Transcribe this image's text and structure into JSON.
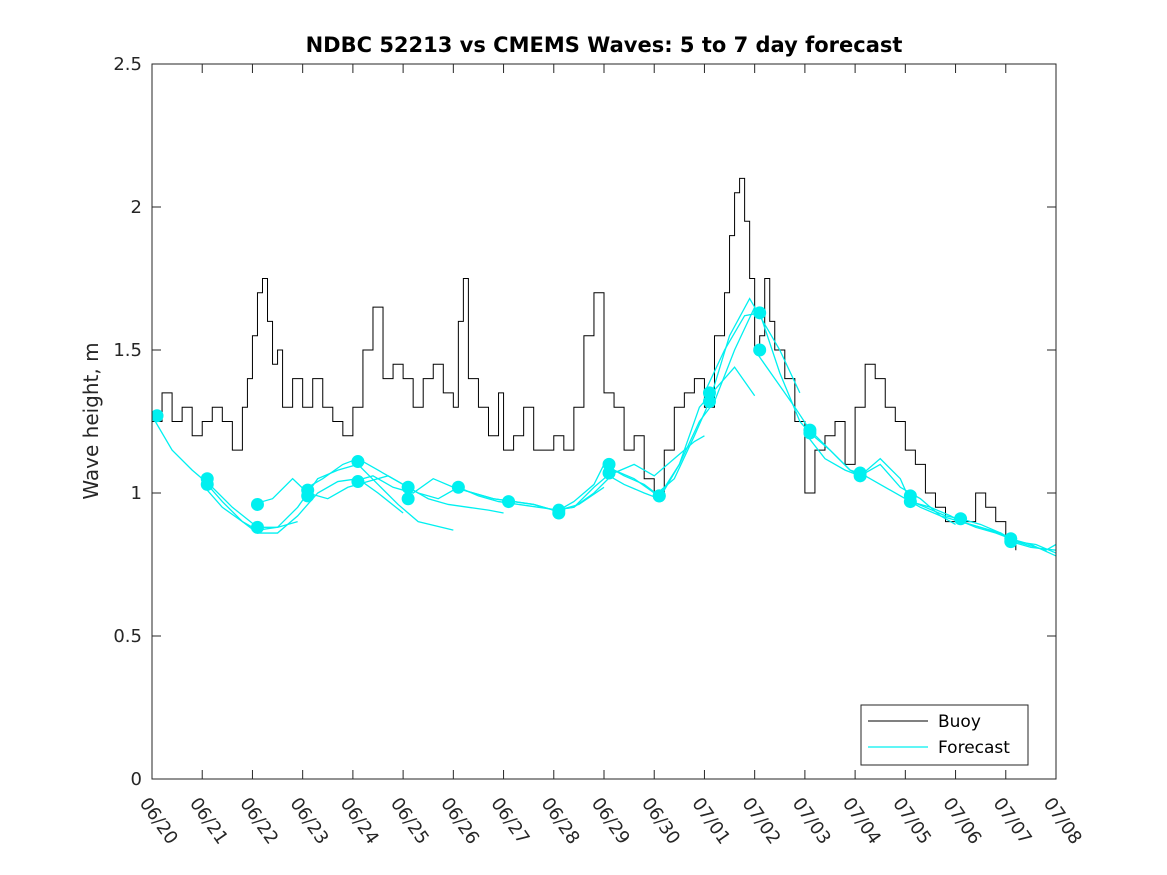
{
  "chart_data": {
    "type": "line",
    "title": "NDBC 52213 vs CMEMS Waves: 5 to 7 day forecast",
    "xlabel": "",
    "ylabel": "Wave height, m",
    "x_start": "06/20",
    "x_ticks": [
      "06/20",
      "06/21",
      "06/22",
      "06/23",
      "06/24",
      "06/25",
      "06/26",
      "06/27",
      "06/28",
      "06/29",
      "06/30",
      "07/01",
      "07/02",
      "07/03",
      "07/04",
      "07/05",
      "07/06",
      "07/07",
      "07/08"
    ],
    "xlim": [
      0,
      18
    ],
    "ylim": [
      0,
      2.5
    ],
    "y_ticks": [
      "0",
      "0.5",
      "1",
      "1.5",
      "2",
      "2.5"
    ],
    "y_tick_values": [
      0,
      0.5,
      1,
      1.5,
      2,
      2.5
    ],
    "legend": {
      "position": "bottom-right",
      "entries": [
        {
          "label": "Buoy",
          "color": "#000000"
        },
        {
          "label": "Forecast",
          "color": "#00f0f0"
        }
      ]
    },
    "colors": {
      "buoy": "#000000",
      "forecast": "#00f0f0",
      "axes": "#262626"
    },
    "series": [
      {
        "name": "Buoy",
        "x": [
          0,
          0.2,
          0.4,
          0.6,
          0.8,
          1.0,
          1.2,
          1.4,
          1.6,
          1.8,
          1.9,
          2.0,
          2.1,
          2.2,
          2.3,
          2.4,
          2.5,
          2.6,
          2.8,
          3.0,
          3.2,
          3.4,
          3.6,
          3.8,
          4.0,
          4.2,
          4.4,
          4.6,
          4.8,
          5.0,
          5.2,
          5.4,
          5.6,
          5.8,
          6.0,
          6.1,
          6.2,
          6.3,
          6.5,
          6.7,
          6.9,
          7.0,
          7.2,
          7.4,
          7.6,
          7.8,
          8.0,
          8.2,
          8.4,
          8.6,
          8.8,
          9.0,
          9.2,
          9.4,
          9.6,
          9.8,
          10.0,
          10.2,
          10.4,
          10.6,
          10.8,
          11.0,
          11.2,
          11.4,
          11.5,
          11.6,
          11.7,
          11.8,
          11.9,
          12.0,
          12.1,
          12.2,
          12.3,
          12.4,
          12.6,
          12.8,
          13.0,
          13.2,
          13.4,
          13.6,
          13.8,
          14.0,
          14.2,
          14.4,
          14.6,
          14.8,
          15.0,
          15.2,
          15.4,
          15.6,
          15.8,
          16.0,
          16.2,
          16.4,
          16.6,
          16.8,
          17.0,
          17.2
        ],
        "y": [
          1.25,
          1.35,
          1.25,
          1.3,
          1.2,
          1.25,
          1.3,
          1.25,
          1.15,
          1.3,
          1.4,
          1.55,
          1.7,
          1.75,
          1.6,
          1.45,
          1.5,
          1.3,
          1.4,
          1.3,
          1.4,
          1.3,
          1.25,
          1.2,
          1.3,
          1.5,
          1.65,
          1.4,
          1.45,
          1.4,
          1.3,
          1.4,
          1.45,
          1.35,
          1.3,
          1.6,
          1.75,
          1.4,
          1.3,
          1.2,
          1.35,
          1.15,
          1.2,
          1.3,
          1.15,
          1.15,
          1.2,
          1.15,
          1.3,
          1.55,
          1.7,
          1.35,
          1.3,
          1.15,
          1.2,
          1.05,
          1.0,
          1.15,
          1.3,
          1.35,
          1.4,
          1.3,
          1.55,
          1.7,
          1.9,
          2.05,
          2.1,
          1.95,
          1.75,
          1.5,
          1.55,
          1.75,
          1.6,
          1.5,
          1.4,
          1.25,
          1.0,
          1.15,
          1.2,
          1.25,
          1.1,
          1.3,
          1.45,
          1.4,
          1.3,
          1.25,
          1.15,
          1.1,
          1.0,
          0.95,
          0.9,
          0.9,
          0.9,
          1.0,
          0.95,
          0.9,
          0.85,
          0.8
        ]
      },
      {
        "name": "Forecast",
        "runs": [
          {
            "x": [
              0,
              0.4,
              0.8,
              1.2,
              1.6,
              2.1,
              2.5,
              2.9
            ],
            "y": [
              1.27,
              1.15,
              1.08,
              1.02,
              0.95,
              0.88,
              0.88,
              0.9
            ]
          },
          {
            "x": [
              1.0,
              1.4,
              1.8,
              2.1,
              2.5,
              2.9,
              3.3,
              3.7,
              4.1,
              4.5,
              4.9,
              5.3,
              6.0
            ],
            "y": [
              1.05,
              0.97,
              0.9,
              0.87,
              0.88,
              0.95,
              1.05,
              1.08,
              1.1,
              1.03,
              0.96,
              0.9,
              0.87
            ]
          },
          {
            "x": [
              1.0,
              1.4,
              1.8,
              2.1,
              2.5,
              2.9,
              3.3,
              3.7,
              4.1,
              4.5,
              5.0
            ],
            "y": [
              1.03,
              0.95,
              0.9,
              0.86,
              0.86,
              0.92,
              1.0,
              1.04,
              1.05,
              1.0,
              0.93
            ]
          },
          {
            "x": [
              2.0,
              2.4,
              2.8,
              3.1,
              3.5,
              3.9,
              4.3,
              4.7,
              5.1,
              5.5,
              5.9,
              6.3,
              6.7,
              7.0
            ],
            "y": [
              0.96,
              0.98,
              1.05,
              1.0,
              0.98,
              1.02,
              1.04,
              1.06,
              1.02,
              0.98,
              0.96,
              0.95,
              0.94,
              0.93
            ]
          },
          {
            "x": [
              3.0,
              3.4,
              3.8,
              4.1,
              4.5,
              4.9,
              5.3,
              5.7,
              6.1,
              6.5,
              6.9,
              7.3,
              7.7,
              8.1,
              8.5,
              9.0
            ],
            "y": [
              1.01,
              1.05,
              1.1,
              1.12,
              1.08,
              1.04,
              1.0,
              0.98,
              1.02,
              0.99,
              0.97,
              0.96,
              0.95,
              0.94,
              0.96,
              1.02
            ]
          },
          {
            "x": [
              4.0,
              4.4,
              4.8,
              5.2,
              5.6,
              6.0,
              6.4,
              6.8,
              7.2,
              7.6,
              8.0,
              8.4,
              8.8,
              9.2,
              9.6,
              10.0
            ],
            "y": [
              1.04,
              1.06,
              1.02,
              1.0,
              1.05,
              1.02,
              1.0,
              0.98,
              0.97,
              0.96,
              0.94,
              0.95,
              1.02,
              1.08,
              1.05,
              1.0
            ]
          },
          {
            "x": [
              6.0,
              6.4,
              6.8,
              7.2,
              7.6,
              8.0,
              8.4,
              8.8,
              9.2,
              9.6,
              10.0,
              10.4,
              10.8,
              11.0
            ],
            "y": [
              1.02,
              1.0,
              0.98,
              0.97,
              0.96,
              0.94,
              0.95,
              1.0,
              1.07,
              1.1,
              1.06,
              1.12,
              1.18,
              1.2
            ]
          },
          {
            "x": [
              8.0,
              8.4,
              8.8,
              9.0,
              9.4,
              9.8,
              10.1,
              10.5,
              10.9,
              11.2,
              11.6,
              12.0
            ],
            "y": [
              0.93,
              0.97,
              1.03,
              1.1,
              1.06,
              1.03,
              0.99,
              1.1,
              1.3,
              1.36,
              1.44,
              1.34
            ]
          },
          {
            "x": [
              9.0,
              9.4,
              9.8,
              10.1,
              10.5,
              10.9,
              11.2,
              11.6,
              12.0
            ],
            "y": [
              1.07,
              1.03,
              1.0,
              0.98,
              1.1,
              1.25,
              1.32,
              1.5,
              1.65
            ]
          },
          {
            "x": [
              10.0,
              10.4,
              10.8,
              11.1,
              11.5,
              11.9,
              12.1,
              12.5,
              12.9
            ],
            "y": [
              0.99,
              1.05,
              1.2,
              1.32,
              1.55,
              1.68,
              1.62,
              1.5,
              1.35
            ]
          },
          {
            "x": [
              11.0,
              11.4,
              11.8,
              12.1,
              12.5,
              12.9,
              13.1,
              13.5,
              13.9,
              14.1,
              14.5,
              14.9,
              15.3,
              15.7,
              16.0
            ],
            "y": [
              1.35,
              1.5,
              1.62,
              1.63,
              1.42,
              1.25,
              1.21,
              1.15,
              1.08,
              1.06,
              1.1,
              1.02,
              0.98,
              0.92,
              0.89
            ]
          },
          {
            "x": [
              12.0,
              12.4,
              12.8,
              13.1,
              13.5,
              13.9,
              14.1,
              14.5,
              14.9,
              15.3,
              15.7,
              16.1,
              16.5,
              17.0
            ],
            "y": [
              1.5,
              1.4,
              1.3,
              1.22,
              1.15,
              1.08,
              1.07,
              1.03,
              0.99,
              0.95,
              0.92,
              0.9,
              0.88,
              0.85
            ]
          },
          {
            "x": [
              13.0,
              13.4,
              13.8,
              14.1,
              14.5,
              14.9,
              15.1,
              15.5,
              15.9,
              16.1,
              16.5,
              16.9,
              17.2,
              17.6,
              18.0
            ],
            "y": [
              1.21,
              1.12,
              1.08,
              1.06,
              1.12,
              1.05,
              0.97,
              0.95,
              0.92,
              0.9,
              0.88,
              0.86,
              0.83,
              0.82,
              0.79
            ]
          },
          {
            "x": [
              15.0,
              15.4,
              15.8,
              16.1,
              16.5,
              16.9,
              17.1,
              17.5,
              18.0
            ],
            "y": [
              0.98,
              0.95,
              0.92,
              0.91,
              0.89,
              0.86,
              0.83,
              0.81,
              0.8
            ]
          },
          {
            "x": [
              16.0,
              16.4,
              16.8,
              17.1,
              17.5,
              18.0
            ],
            "y": [
              0.91,
              0.88,
              0.86,
              0.84,
              0.82,
              0.78
            ]
          },
          {
            "x": [
              17.0,
              17.4,
              17.8,
              18.0
            ],
            "y": [
              0.84,
              0.82,
              0.8,
              0.82
            ]
          }
        ],
        "markers": {
          "x": [
            0.1,
            1.1,
            1.1,
            2.1,
            2.1,
            3.1,
            3.1,
            4.1,
            4.1,
            5.1,
            5.1,
            6.1,
            7.1,
            8.1,
            8.1,
            9.1,
            9.1,
            10.1,
            10.1,
            11.1,
            11.1,
            12.1,
            12.1,
            13.1,
            13.1,
            14.1,
            14.1,
            15.1,
            15.1,
            16.1,
            17.1,
            17.1
          ],
          "y": [
            1.27,
            1.05,
            1.03,
            0.96,
            0.88,
            1.01,
            0.99,
            1.11,
            1.04,
            1.02,
            0.98,
            1.02,
            0.97,
            0.94,
            0.93,
            1.1,
            1.07,
            0.99,
            0.99,
            1.35,
            1.32,
            1.63,
            1.5,
            1.22,
            1.21,
            1.07,
            1.06,
            0.99,
            0.97,
            0.91,
            0.84,
            0.83
          ]
        }
      }
    ]
  }
}
